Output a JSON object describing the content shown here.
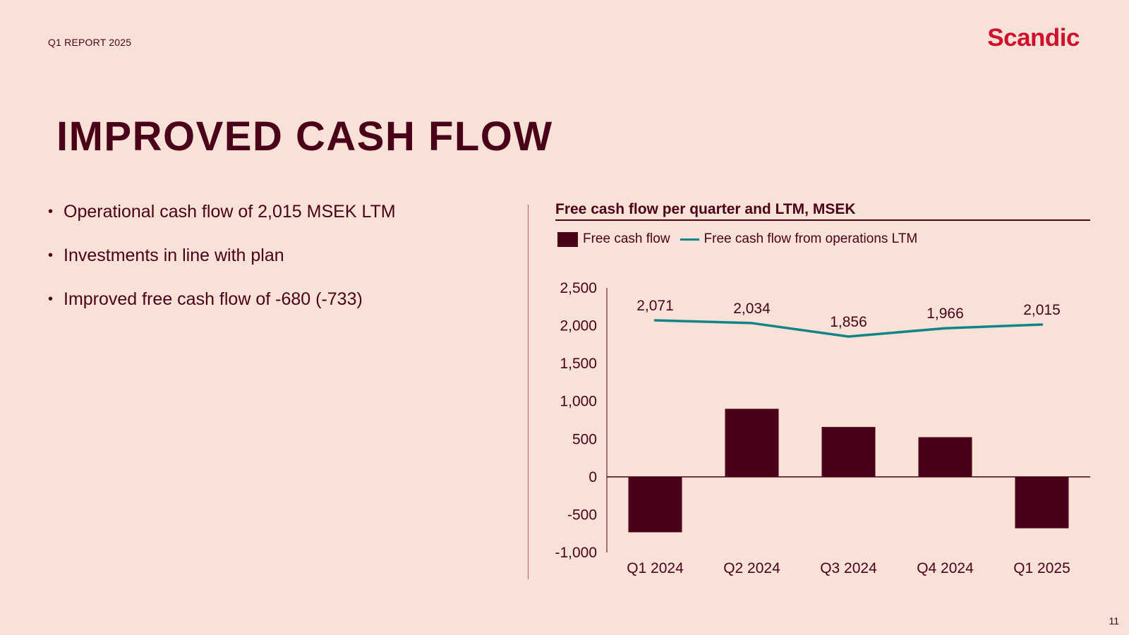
{
  "header": {
    "report_label": "Q1 REPORT 2025",
    "brand": "Scandic"
  },
  "page": {
    "title": "IMPROVED CASH FLOW",
    "number": "11"
  },
  "bullets": [
    "Operational cash flow of 2,015 MSEK LTM",
    "Investments in line with plan",
    "Improved free cash flow of -680 (-733)"
  ],
  "colors": {
    "background": "#f8e1d6",
    "primary": "#4b0019",
    "line": "#13838a",
    "brand": "#d0102c"
  },
  "chart_data": {
    "type": "bar",
    "title": "Free cash flow per quarter and LTM, MSEK",
    "legend_position": "top-left",
    "grid": false,
    "categories": [
      "Q1 2024",
      "Q2 2024",
      "Q3 2024",
      "Q4 2024",
      "Q1 2025"
    ],
    "ylim": [
      -1000,
      2500
    ],
    "yticks": [
      "2,500",
      "2,000",
      "1,500",
      "1,000",
      "500",
      "0",
      "-500",
      "-1,000"
    ],
    "series": [
      {
        "name": "Free cash flow",
        "type": "bar",
        "color": "#4b0019",
        "values": [
          -733,
          900,
          660,
          525,
          -680
        ]
      },
      {
        "name": "Free cash flow from operations LTM",
        "type": "line",
        "color": "#13838a",
        "values": [
          2071,
          2034,
          1856,
          1966,
          2015
        ],
        "labels": [
          "2,071",
          "2,034",
          "1,856",
          "1,966",
          "2,015"
        ]
      }
    ]
  }
}
